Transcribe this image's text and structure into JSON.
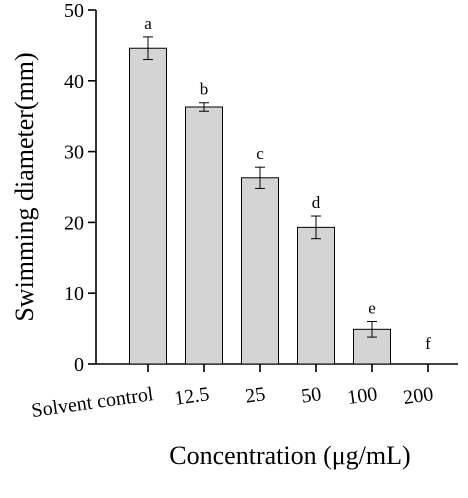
{
  "chart_data": {
    "type": "bar",
    "title": "",
    "xlabel": "Concentration (μg/mL)",
    "ylabel": "Swimming diameter(mm)",
    "categories": [
      "Solvent control",
      "12.5",
      "25",
      "50",
      "100",
      "200"
    ],
    "values": [
      44.6,
      36.3,
      26.3,
      19.3,
      4.9,
      0
    ],
    "error": [
      1.6,
      0.6,
      1.5,
      1.6,
      1.1,
      0
    ],
    "significance_letters": [
      "a",
      "b",
      "c",
      "d",
      "e",
      "f"
    ],
    "ylim": [
      0,
      50
    ],
    "yticks": [
      "0",
      "10",
      "20",
      "30",
      "40",
      "50"
    ],
    "grid": false,
    "bar_color": "#d4d4d4",
    "edge_color": "#000000"
  }
}
